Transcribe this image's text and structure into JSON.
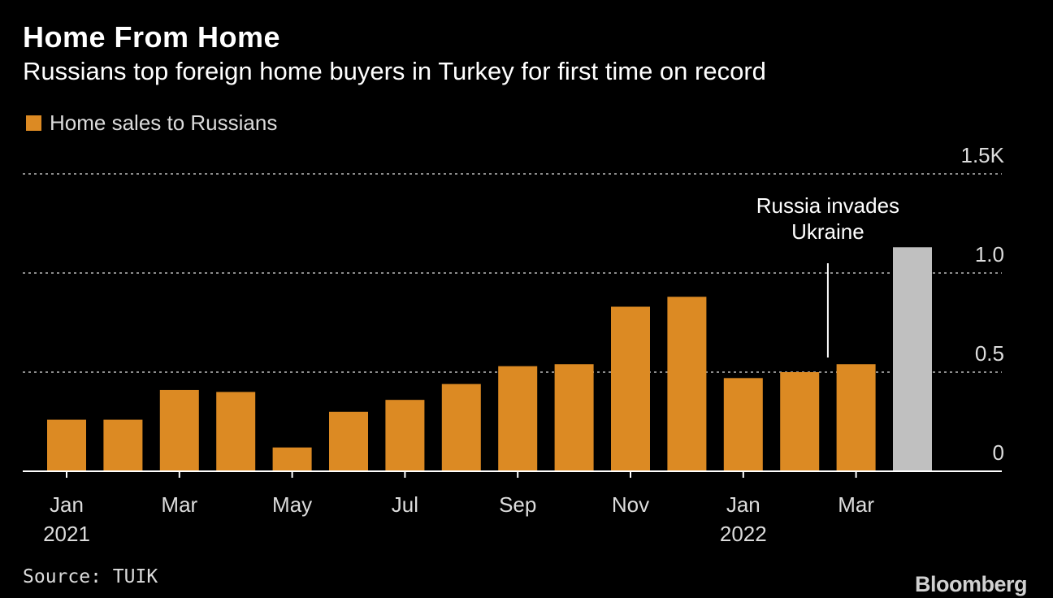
{
  "header": {
    "title": "Home From Home",
    "subtitle": "Russians top foreign home buyers in Turkey for first time on record"
  },
  "legend": {
    "label": "Home sales to Russians"
  },
  "footer": {
    "source": "Source: TUIK",
    "brand": "Bloomberg"
  },
  "colors": {
    "bar": "#dc8a23",
    "highlight_bar": "#c0c0c0",
    "grid": "#8c8c8c",
    "text": "#ffffff",
    "axis_text": "#dcdcdc"
  },
  "chart_data": {
    "type": "bar",
    "title": "Home From Home",
    "subtitle": "Russians top foreign home buyers in Turkey for first time on record",
    "unit": "K",
    "categories": [
      "Jan 2021",
      "Feb 2021",
      "Mar 2021",
      "Apr 2021",
      "May 2021",
      "Jun 2021",
      "Jul 2021",
      "Aug 2021",
      "Sep 2021",
      "Oct 2021",
      "Nov 2021",
      "Dec 2021",
      "Jan 2022",
      "Feb 2022",
      "Mar 2022",
      "Apr 2022"
    ],
    "series": [
      {
        "name": "Home sales to Russians",
        "values": [
          0.26,
          0.26,
          0.41,
          0.4,
          0.12,
          0.3,
          0.36,
          0.44,
          0.53,
          0.54,
          0.83,
          0.88,
          0.47,
          0.5,
          0.54,
          1.13
        ]
      }
    ],
    "highlight_index": 15,
    "ylim": [
      0,
      1.5
    ],
    "y_ticks": [
      {
        "value": 0,
        "label": "0"
      },
      {
        "value": 0.5,
        "label": "0.5"
      },
      {
        "value": 1.0,
        "label": "1.0"
      },
      {
        "value": 1.5,
        "label": "1.5K"
      }
    ],
    "x_tick_labels": [
      {
        "index": 0,
        "line1": "Jan",
        "line2": "2021"
      },
      {
        "index": 2,
        "line1": "Mar",
        "line2": ""
      },
      {
        "index": 4,
        "line1": "May",
        "line2": ""
      },
      {
        "index": 6,
        "line1": "Jul",
        "line2": ""
      },
      {
        "index": 8,
        "line1": "Sep",
        "line2": ""
      },
      {
        "index": 10,
        "line1": "Nov",
        "line2": ""
      },
      {
        "index": 12,
        "line1": "Jan",
        "line2": "2022"
      },
      {
        "index": 14,
        "line1": "Mar",
        "line2": ""
      }
    ],
    "annotation": {
      "text_lines": [
        "Russia invades",
        "Ukraine"
      ],
      "position_between": [
        13,
        14
      ]
    },
    "grid": true,
    "xlabel": "",
    "ylabel": ""
  }
}
